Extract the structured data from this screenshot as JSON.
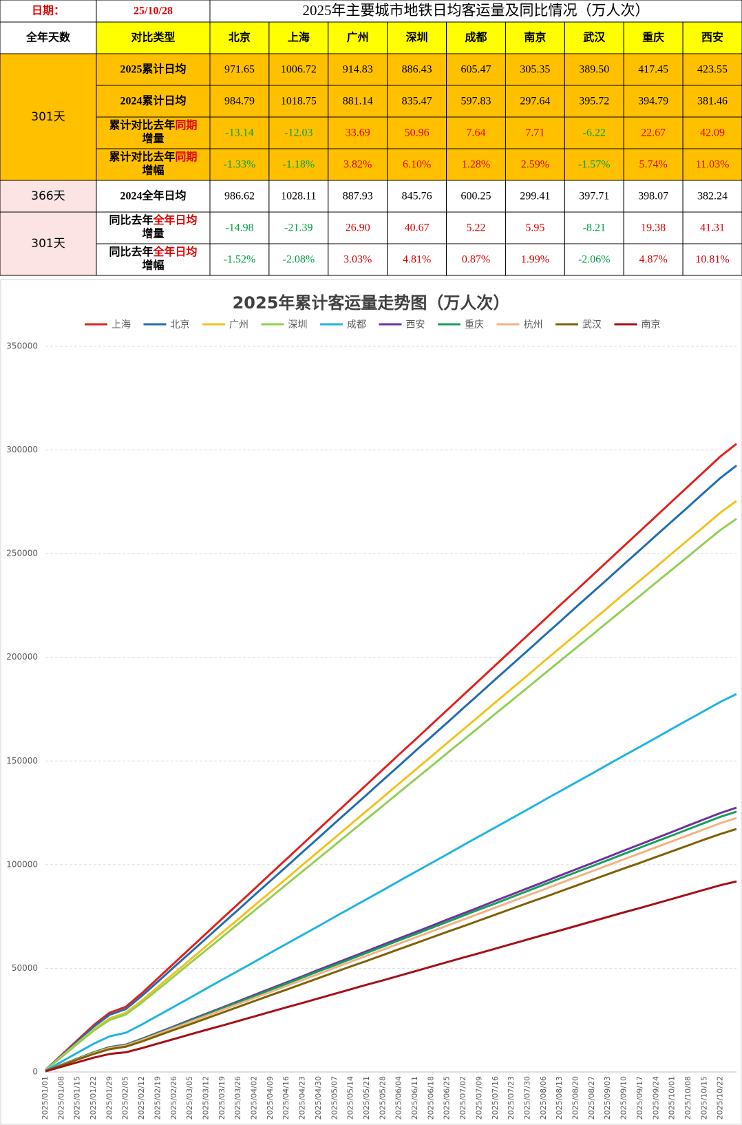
{
  "table": {
    "date_label": "日期：",
    "date": "25/10/28",
    "title": "2025年主要城市地铁日均客运量及同比情况（万人次）",
    "header": [
      "全年天数",
      "对比类型",
      "北京",
      "上海",
      "广州",
      "深圳",
      "成都",
      "南京",
      "武汉",
      "重庆",
      "西安"
    ],
    "groups": [
      {
        "days": "301天",
        "rows": [
          {
            "label": [
              "2025累计日均"
            ],
            "cells": [
              "971.65",
              "1006.72",
              "914.83",
              "886.43",
              "605.47",
              "305.35",
              "389.50",
              "417.45",
              "423.55"
            ]
          },
          {
            "label": [
              "2024累计日均"
            ],
            "cells": [
              "984.79",
              "1018.75",
              "881.14",
              "835.47",
              "597.83",
              "297.64",
              "395.72",
              "394.79",
              "381.46"
            ]
          },
          {
            "label": [
              "累计对比去年",
              "同期",
              "增量"
            ],
            "cells": [
              "-13.14",
              "-12.03",
              "33.69",
              "50.96",
              "7.64",
              "7.71",
              "-6.22",
              "22.67",
              "42.09"
            ]
          },
          {
            "label": [
              "累计对比去年",
              "同期",
              "增幅"
            ],
            "cells": [
              "-1.33%",
              "-1.18%",
              "3.82%",
              "6.10%",
              "1.28%",
              "2.59%",
              "-1.57%",
              "5.74%",
              "11.03%"
            ]
          }
        ]
      },
      {
        "days": "366天",
        "rows": [
          {
            "label": [
              "2024全年日均"
            ],
            "cells": [
              "986.62",
              "1028.11",
              "887.93",
              "845.76",
              "600.25",
              "299.41",
              "397.71",
              "398.07",
              "382.24"
            ]
          }
        ]
      },
      {
        "days": "301天",
        "rows": [
          {
            "label": [
              "同比去年",
              "全年日均",
              "增量"
            ],
            "cells": [
              "-14.98",
              "-21.39",
              "26.90",
              "40.67",
              "5.22",
              "5.95",
              "-8.21",
              "19.38",
              "41.31"
            ]
          },
          {
            "label": [
              "同比去年",
              "全年日均",
              "增幅"
            ],
            "cells": [
              "-1.52%",
              "-2.08%",
              "3.03%",
              "4.81%",
              "0.87%",
              "1.99%",
              "-2.06%",
              "4.87%",
              "10.81%"
            ]
          }
        ]
      }
    ]
  },
  "chart_data": {
    "type": "line",
    "title": "2025年累计客运量走势图（万人次）",
    "categories": [
      "2025/01/01",
      "2025/01/08",
      "2025/01/15",
      "2025/01/22",
      "2025/01/29",
      "2025/02/05",
      "2025/02/12",
      "2025/02/19",
      "2025/02/26",
      "2025/03/05",
      "2025/03/12",
      "2025/03/19",
      "2025/03/26",
      "2025/04/02",
      "2025/04/09",
      "2025/04/16",
      "2025/04/23",
      "2025/04/30",
      "2025/05/07",
      "2025/05/14",
      "2025/05/21",
      "2025/05/28",
      "2025/06/04",
      "2025/06/11",
      "2025/06/18",
      "2025/06/25",
      "2025/07/02",
      "2025/07/09",
      "2025/07/16",
      "2025/07/23",
      "2025/07/30",
      "2025/08/06",
      "2025/08/13",
      "2025/08/20",
      "2025/08/27",
      "2025/09/03",
      "2025/09/10",
      "2025/09/17",
      "2025/09/24",
      "2025/10/01",
      "2025/10/08",
      "2025/10/15",
      "2025/10/22",
      null
    ],
    "ylim": [
      0,
      350000
    ],
    "yticks": [
      0,
      50000,
      100000,
      150000,
      200000,
      250000,
      300000,
      350000
    ],
    "grid": true,
    "legend": "top",
    "series": [
      {
        "name": "上海",
        "color": "#e3201c",
        "values": [
          1000,
          8200,
          15400,
          22600,
          28600,
          31400,
          38000,
          45200,
          52400,
          59600,
          66800,
          74000,
          81100,
          88300,
          95500,
          102700,
          109900,
          117100,
          124300,
          131500,
          138700,
          145900,
          153100,
          160200,
          167400,
          174600,
          181800,
          189000,
          196200,
          203400,
          210600,
          217800,
          225000,
          232100,
          239300,
          246500,
          253700,
          260900,
          268100,
          275300,
          282500,
          289700,
          296900,
          303000
        ]
      },
      {
        "name": "北京",
        "color": "#1f6db0",
        "values": [
          1000,
          7900,
          14900,
          21800,
          27600,
          30300,
          36700,
          43600,
          50600,
          57500,
          64400,
          71400,
          78300,
          85300,
          92200,
          99100,
          106100,
          113000,
          120000,
          126900,
          133800,
          140800,
          147700,
          154700,
          161600,
          168500,
          175500,
          182400,
          189400,
          196300,
          203200,
          210200,
          217100,
          224100,
          231000,
          237900,
          244900,
          251800,
          258800,
          265700,
          272600,
          279600,
          286500,
          292500
        ]
      },
      {
        "name": "广州",
        "color": "#f4c11c",
        "values": [
          900,
          7500,
          14000,
          20500,
          25900,
          28600,
          34500,
          41100,
          47600,
          54100,
          60700,
          67200,
          73700,
          80300,
          86800,
          93300,
          99900,
          106400,
          112900,
          119500,
          126000,
          132500,
          139100,
          145600,
          152100,
          158700,
          165200,
          171700,
          178300,
          184800,
          191300,
          197900,
          204400,
          210900,
          217500,
          224000,
          230600,
          237100,
          243600,
          250200,
          256700,
          263200,
          269800,
          275400
        ]
      },
      {
        "name": "深圳",
        "color": "#92cf55",
        "values": [
          900,
          7200,
          13600,
          19900,
          25100,
          27700,
          33500,
          39800,
          46100,
          52500,
          58800,
          65100,
          71500,
          77800,
          84100,
          90500,
          96800,
          103100,
          109400,
          115800,
          122100,
          128400,
          134800,
          141100,
          147400,
          153800,
          160100,
          166400,
          172800,
          179100,
          185400,
          191800,
          198100,
          204400,
          210700,
          217100,
          223400,
          229700,
          236100,
          242400,
          248700,
          255100,
          261400,
          266800
        ]
      },
      {
        "name": "成都",
        "color": "#1eb4e2",
        "values": [
          600,
          4900,
          9300,
          13600,
          17200,
          18900,
          22900,
          27200,
          31500,
          35800,
          40200,
          44500,
          48800,
          53100,
          57500,
          61800,
          66100,
          70400,
          74800,
          79100,
          83400,
          87700,
          92100,
          96400,
          100700,
          105000,
          109400,
          113700,
          118000,
          122300,
          126600,
          131000,
          135300,
          139600,
          143900,
          148300,
          152600,
          156900,
          161200,
          165600,
          169900,
          174200,
          178500,
          182300
        ]
      },
      {
        "name": "西安",
        "color": "#7030a0",
        "values": [
          400,
          3500,
          6500,
          9500,
          12000,
          13200,
          16000,
          19000,
          22000,
          25100,
          28100,
          31100,
          34100,
          37200,
          40200,
          43200,
          46200,
          49300,
          52300,
          55300,
          58300,
          61400,
          64400,
          67400,
          70400,
          73500,
          76500,
          79500,
          82600,
          85600,
          88600,
          91600,
          94700,
          97700,
          100700,
          103700,
          106800,
          109800,
          112800,
          115800,
          118900,
          121900,
          124900,
          127500
        ]
      },
      {
        "name": "重庆",
        "color": "#12a157",
        "values": [
          400,
          3400,
          6400,
          9400,
          11800,
          13000,
          15800,
          18700,
          21700,
          24700,
          27700,
          30700,
          33600,
          36600,
          39600,
          42600,
          45600,
          48600,
          51500,
          54500,
          57500,
          60500,
          63500,
          66400,
          69400,
          72400,
          75400,
          78400,
          81300,
          84300,
          87300,
          90300,
          93300,
          96300,
          99200,
          102200,
          105200,
          108200,
          111200,
          114100,
          117100,
          120100,
          123100,
          125600
        ]
      },
      {
        "name": "杭州",
        "color": "#f4b183",
        "values": [
          400,
          3300,
          6200,
          9100,
          11500,
          12700,
          15400,
          18300,
          21200,
          24100,
          27000,
          29900,
          32800,
          35700,
          38600,
          41500,
          44400,
          47300,
          50300,
          53200,
          56100,
          59000,
          61900,
          64800,
          67700,
          70600,
          73500,
          76400,
          79300,
          82200,
          85100,
          88000,
          91000,
          93900,
          96800,
          99700,
          102600,
          105500,
          108400,
          111300,
          114200,
          117100,
          120000,
          122500
        ]
      },
      {
        "name": "武汉",
        "color": "#7f6000",
        "values": [
          400,
          3200,
          6000,
          8700,
          11000,
          12200,
          14700,
          17500,
          20300,
          23000,
          25800,
          28600,
          31400,
          34200,
          37000,
          39700,
          42500,
          45300,
          48100,
          50900,
          53600,
          56400,
          59200,
          62000,
          64800,
          67600,
          70300,
          73100,
          75900,
          78700,
          81500,
          84200,
          87000,
          89800,
          92600,
          95400,
          98200,
          100900,
          103700,
          106500,
          109300,
          112100,
          114800,
          117200
        ]
      },
      {
        "name": "南京",
        "color": "#a50f15",
        "values": [
          300,
          2500,
          4700,
          6900,
          8700,
          9500,
          11500,
          13700,
          15900,
          18100,
          20300,
          22400,
          24600,
          26800,
          29000,
          31200,
          33300,
          35500,
          37700,
          39900,
          42100,
          44200,
          46400,
          48600,
          50800,
          53000,
          55200,
          57300,
          59500,
          61700,
          63900,
          66100,
          68200,
          70400,
          72600,
          74800,
          77000,
          79100,
          81300,
          83500,
          85700,
          87900,
          90100,
          91900
        ]
      }
    ]
  }
}
